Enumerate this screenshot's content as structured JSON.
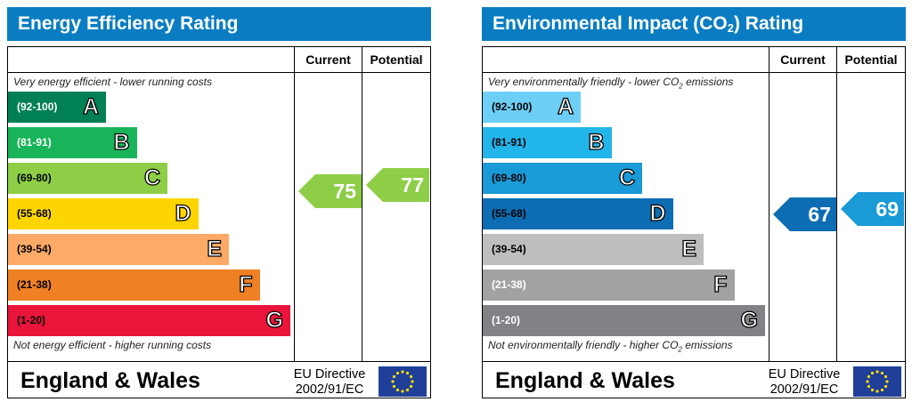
{
  "chart_data": [
    {
      "type": "bar",
      "title": "Energy Efficiency Rating",
      "columns": [
        "Current",
        "Potential"
      ],
      "top_caption": "Very energy efficient - lower running costs",
      "bottom_caption": "Not energy efficient - higher running costs",
      "bands": [
        {
          "letter": "A",
          "range": "(92-100)",
          "color": "#008054",
          "text_color": "#ffffff"
        },
        {
          "letter": "B",
          "range": "(81-91)",
          "color": "#19b459",
          "text_color": "#ffffff"
        },
        {
          "letter": "C",
          "range": "(69-80)",
          "color": "#8dce46",
          "text_color": "#000000"
        },
        {
          "letter": "D",
          "range": "(55-68)",
          "color": "#ffd500",
          "text_color": "#000000"
        },
        {
          "letter": "E",
          "range": "(39-54)",
          "color": "#fcaa65",
          "text_color": "#000000"
        },
        {
          "letter": "F",
          "range": "(21-38)",
          "color": "#ef8023",
          "text_color": "#000000"
        },
        {
          "letter": "G",
          "range": "(1-20)",
          "color": "#e9153b",
          "text_color": "#000000"
        }
      ],
      "current": {
        "value": 75,
        "color": "#8dce46"
      },
      "potential": {
        "value": 77,
        "color": "#8dce46"
      },
      "region": "England & Wales",
      "directive": [
        "EU Directive",
        "2002/91/EC"
      ]
    },
    {
      "type": "bar",
      "title": "Environmental Impact (CO2) Rating",
      "title_parts": [
        "Environmental Impact (CO",
        "2",
        ") Rating"
      ],
      "columns": [
        "Current",
        "Potential"
      ],
      "top_caption": "Very environmentally friendly - lower CO2 emissions",
      "top_caption_parts": [
        "Very environmentally friendly - lower CO",
        "2",
        " emissions"
      ],
      "bottom_caption": "Not environmentally friendly - higher CO2 emissions",
      "bottom_caption_parts": [
        "Not environmentally friendly - higher CO",
        "2",
        " emissions"
      ],
      "bands": [
        {
          "letter": "A",
          "range": "(92-100)",
          "color": "#6ecff6",
          "text_color": "#000000"
        },
        {
          "letter": "B",
          "range": "(81-91)",
          "color": "#22b5ea",
          "text_color": "#000000"
        },
        {
          "letter": "C",
          "range": "(69-80)",
          "color": "#1a9ad6",
          "text_color": "#000000"
        },
        {
          "letter": "D",
          "range": "(55-68)",
          "color": "#0c6db3",
          "text_color": "#000000"
        },
        {
          "letter": "E",
          "range": "(39-54)",
          "color": "#bcbec0",
          "text_color": "#000000"
        },
        {
          "letter": "F",
          "range": "(21-38)",
          "color": "#a0a2a4",
          "text_color": "#ffffff"
        },
        {
          "letter": "G",
          "range": "(1-20)",
          "color": "#808285",
          "text_color": "#ffffff"
        }
      ],
      "current": {
        "value": 67,
        "color": "#0c6db3"
      },
      "potential": {
        "value": 69,
        "color": "#1a9ad6"
      },
      "region": "England & Wales",
      "directive": [
        "EU Directive",
        "2002/91/EC"
      ]
    }
  ]
}
